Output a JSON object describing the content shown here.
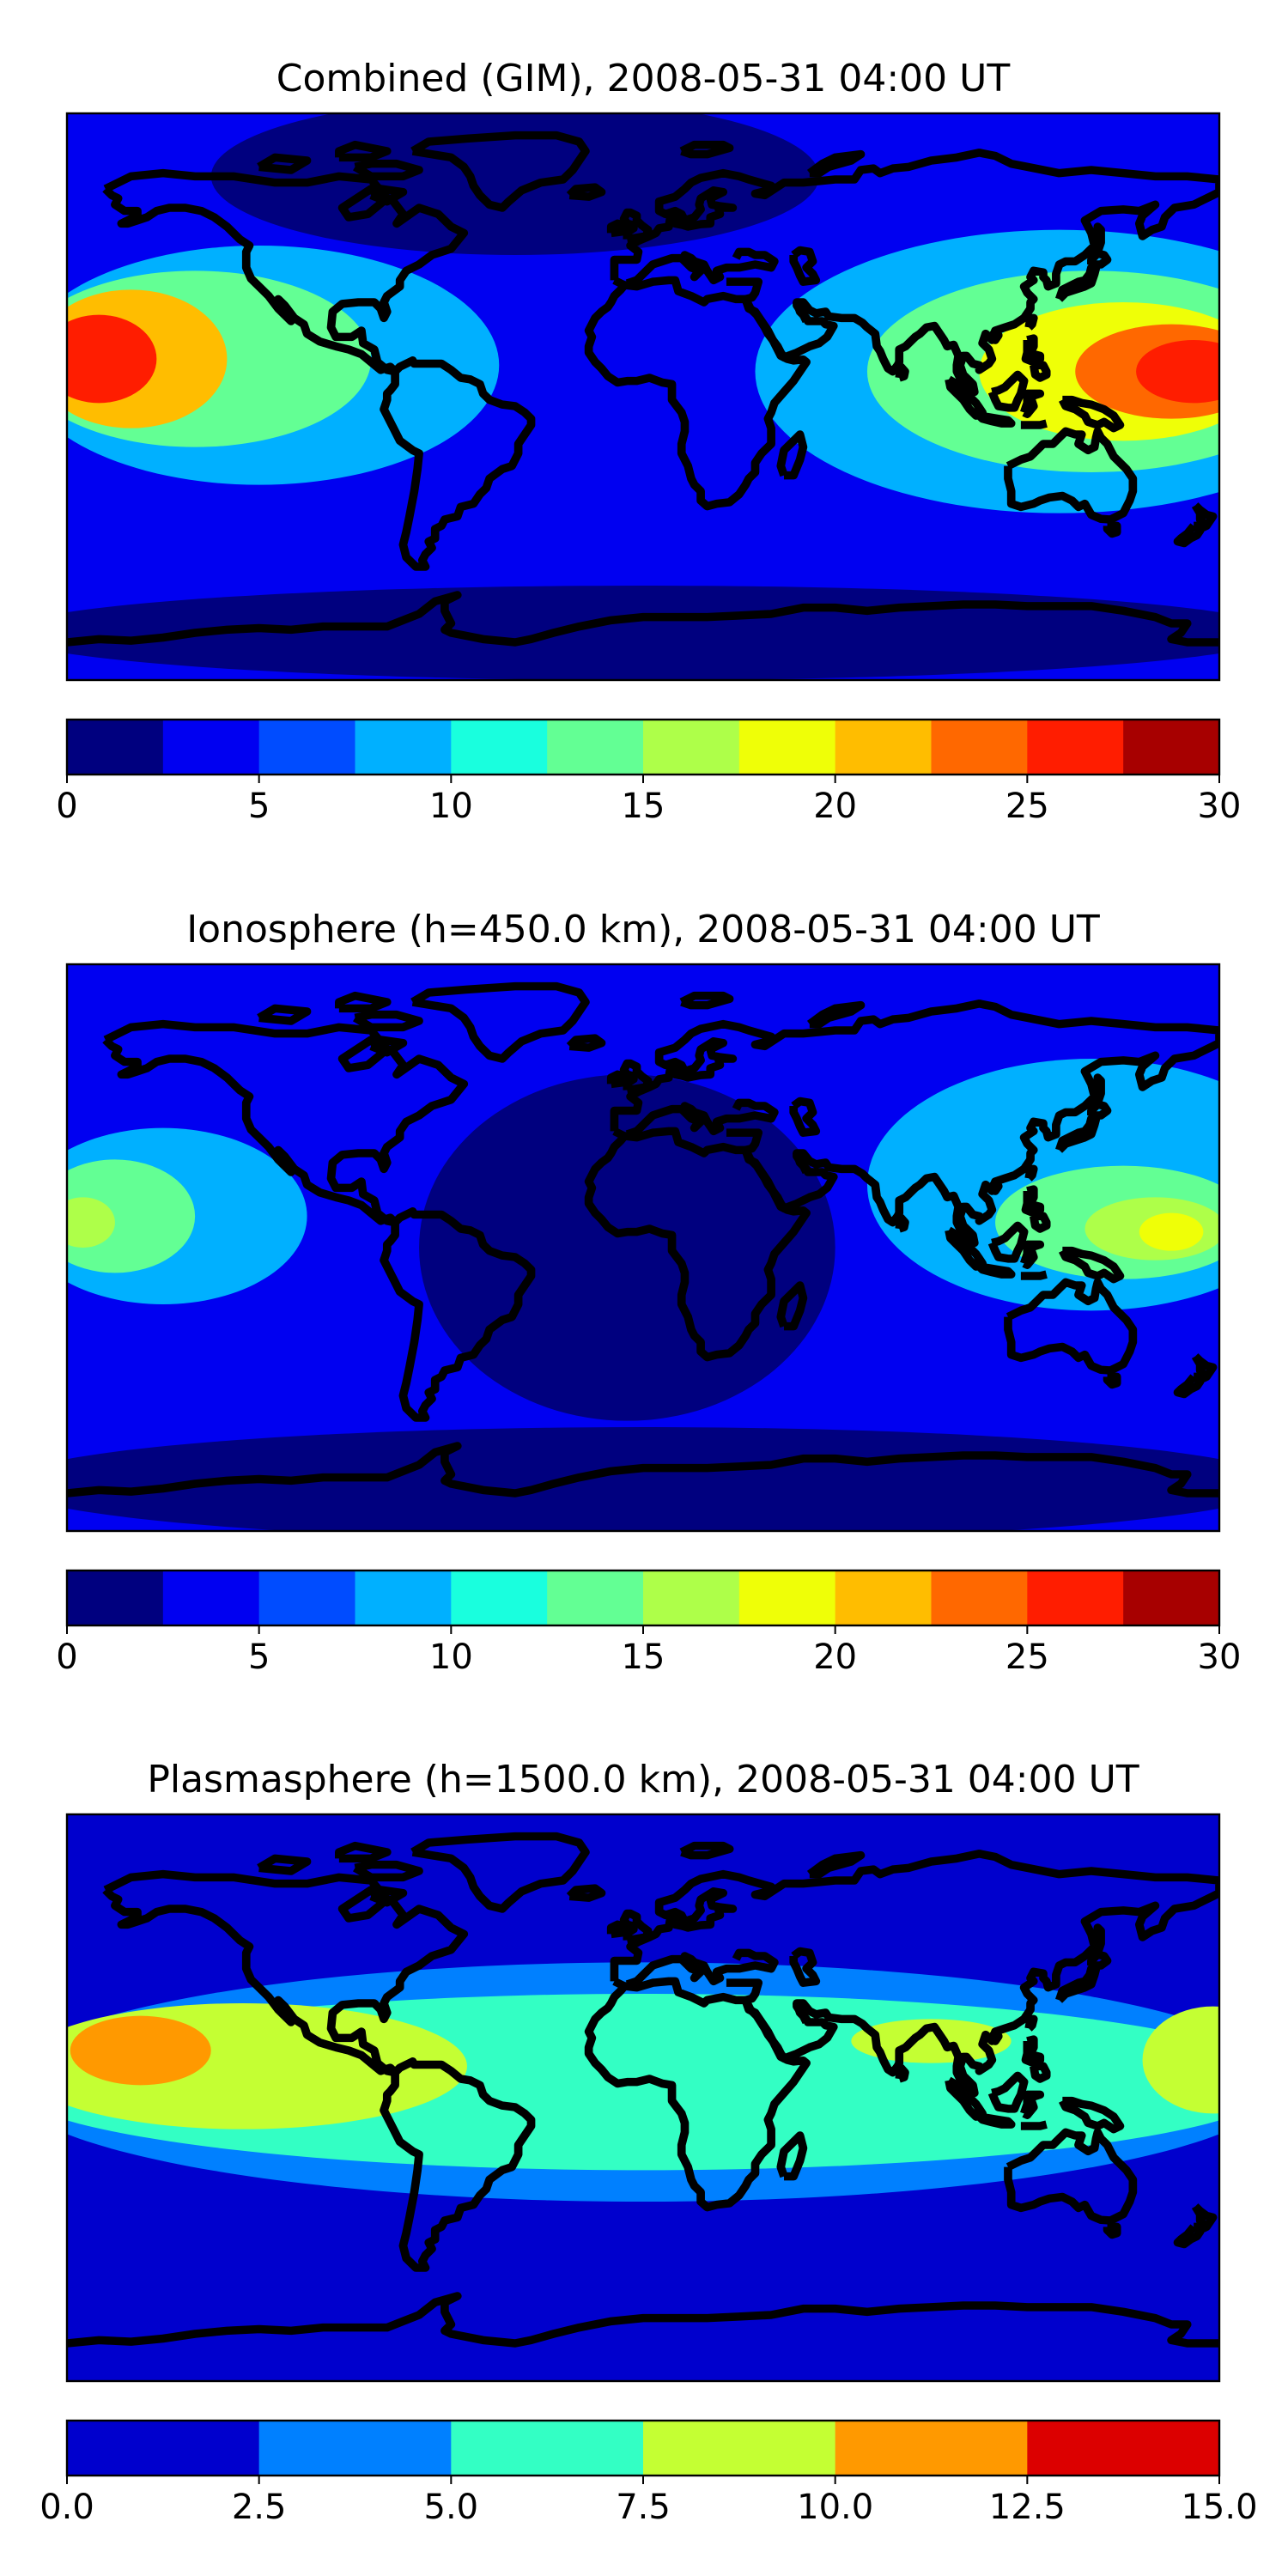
{
  "chart_data": [
    {
      "type": "heatmap",
      "title": "Combined (GIM), 2008-05-31 04:00 UT",
      "colorbar": {
        "levels": [
          0,
          2.5,
          5,
          7.5,
          10,
          12.5,
          15,
          17.5,
          20,
          22.5,
          25,
          27.5,
          30
        ],
        "colors": [
          "#00007f",
          "#0000f1",
          "#004cff",
          "#00b0ff",
          "#19ffde",
          "#63ff94",
          "#aeff49",
          "#efff07",
          "#ffbd00",
          "#ff6800",
          "#ff1d00",
          "#a70000"
        ],
        "tick_values": [
          0,
          5,
          10,
          15,
          20,
          25,
          30
        ],
        "tick_labels": [
          "0",
          "5",
          "10",
          "15",
          "20",
          "25",
          "30"
        ]
      },
      "background_level": 1,
      "blobs": [
        {
          "lon": -40,
          "lat": 70,
          "rx": 95,
          "ry": 25,
          "level": 0
        },
        {
          "lon": -120,
          "lat": 10,
          "rx": 75,
          "ry": 38,
          "level": 3
        },
        {
          "lon": -140,
          "lat": 12,
          "rx": 55,
          "ry": 28,
          "level": 5
        },
        {
          "lon": -160,
          "lat": 12,
          "rx": 30,
          "ry": 22,
          "level": 8
        },
        {
          "lon": -170,
          "lat": 12,
          "rx": 18,
          "ry": 14,
          "level": 10
        },
        {
          "lon": 130,
          "lat": 8,
          "rx": 95,
          "ry": 45,
          "level": 3
        },
        {
          "lon": 140,
          "lat": 8,
          "rx": 70,
          "ry": 32,
          "level": 5
        },
        {
          "lon": 150,
          "lat": 8,
          "rx": 45,
          "ry": 22,
          "level": 7
        },
        {
          "lon": 165,
          "lat": 8,
          "rx": 30,
          "ry": 15,
          "level": 9
        },
        {
          "lon": 172,
          "lat": 8,
          "rx": 18,
          "ry": 10,
          "level": 10
        },
        {
          "lon": 0,
          "lat": -75,
          "rx": 200,
          "ry": 15,
          "level": 0
        }
      ]
    },
    {
      "type": "heatmap",
      "title": "Ionosphere  (h=450.0 km), 2008-05-31 04:00 UT",
      "colorbar": {
        "levels": [
          0,
          2.5,
          5,
          7.5,
          10,
          12.5,
          15,
          17.5,
          20,
          22.5,
          25,
          27.5,
          30
        ],
        "colors": [
          "#00007f",
          "#0000f1",
          "#004cff",
          "#00b0ff",
          "#19ffde",
          "#63ff94",
          "#aeff49",
          "#efff07",
          "#ffbd00",
          "#ff6800",
          "#ff1d00",
          "#a70000"
        ],
        "tick_values": [
          0,
          5,
          10,
          15,
          20,
          25,
          30
        ],
        "tick_labels": [
          "0",
          "5",
          "10",
          "15",
          "20",
          "25",
          "30"
        ]
      },
      "background_level": 1,
      "blobs": [
        {
          "lon": -5,
          "lat": 0,
          "rx": 65,
          "ry": 55,
          "level": 0
        },
        {
          "lon": 0,
          "lat": -75,
          "rx": 200,
          "ry": 18,
          "level": 0
        },
        {
          "lon": -150,
          "lat": 10,
          "rx": 45,
          "ry": 28,
          "level": 3
        },
        {
          "lon": -165,
          "lat": 10,
          "rx": 25,
          "ry": 18,
          "level": 5
        },
        {
          "lon": -175,
          "lat": 8,
          "rx": 10,
          "ry": 8,
          "level": 6
        },
        {
          "lon": 140,
          "lat": 20,
          "rx": 70,
          "ry": 40,
          "level": 3
        },
        {
          "lon": 150,
          "lat": 8,
          "rx": 40,
          "ry": 18,
          "level": 5
        },
        {
          "lon": 160,
          "lat": 6,
          "rx": 22,
          "ry": 10,
          "level": 6
        },
        {
          "lon": 165,
          "lat": 5,
          "rx": 10,
          "ry": 6,
          "level": 7
        }
      ]
    },
    {
      "type": "heatmap",
      "title": "Plasmasphere (h=1500.0 km), 2008-05-31 04:00 UT",
      "colorbar": {
        "levels": [
          0,
          2.5,
          5,
          7.5,
          10,
          12.5,
          15
        ],
        "colors": [
          "#0000cd",
          "#0080ff",
          "#33ffc4",
          "#c4ff33",
          "#ff9900",
          "#dc0000"
        ],
        "tick_values": [
          0,
          2.5,
          5,
          7.5,
          10,
          12.5,
          15
        ],
        "tick_labels": [
          "0.0",
          "2.5",
          "5.0",
          "7.5",
          "10.0",
          "12.5",
          "15.0"
        ]
      },
      "background_level": 0,
      "blobs": [
        {
          "lon": 0,
          "lat": 5,
          "rx": 200,
          "ry": 38,
          "level": 1
        },
        {
          "lon": 0,
          "lat": 5,
          "rx": 200,
          "ry": 28,
          "level": 2
        },
        {
          "lon": -125,
          "lat": 10,
          "rx": 70,
          "ry": 20,
          "level": 3
        },
        {
          "lon": 90,
          "lat": 18,
          "rx": 25,
          "ry": 7,
          "level": 3
        },
        {
          "lon": 178,
          "lat": 12,
          "rx": 22,
          "ry": 17,
          "level": 3
        },
        {
          "lon": -157,
          "lat": 15,
          "rx": 22,
          "ry": 11,
          "level": 4
        }
      ]
    }
  ]
}
